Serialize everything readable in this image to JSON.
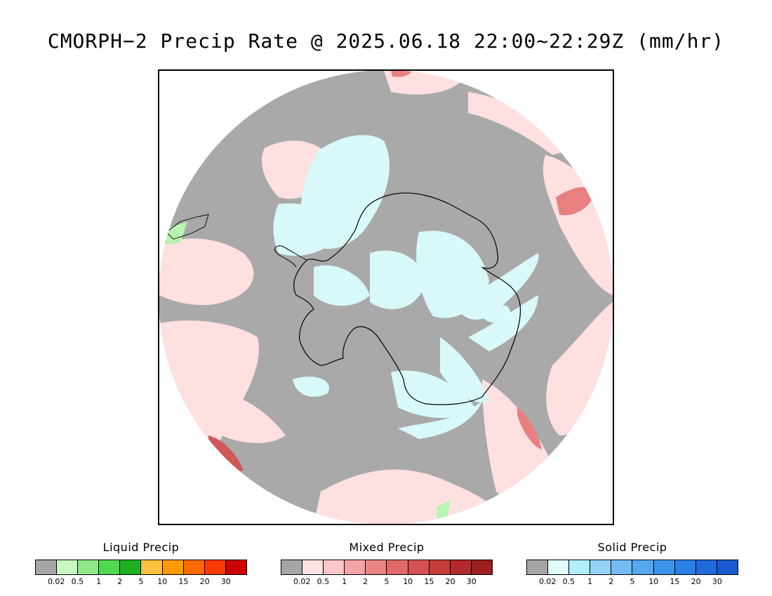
{
  "title": "CMORPH−2 Precip Rate @ 2025.06.18 22:00~22:29Z (mm/hr)",
  "map": {
    "projection": "south-polar-stereographic",
    "colors": {
      "background_no_precip": "#a9a9a9",
      "mixed_light": "#ffe0e0",
      "mixed_mid": "#e88080",
      "mixed_heavy": "#d05858",
      "solid_light": "#d8f8fa",
      "liquid_light": "#b8f5b0",
      "liquid_mid": "#5ae05a",
      "coastline": "#000000"
    }
  },
  "legends": [
    {
      "title": "Liquid Precip",
      "colors": [
        "#a6a6a6",
        "#c8f7c0",
        "#8ee88a",
        "#4ed94e",
        "#1fb01f",
        "#ffc040",
        "#ff9a00",
        "#ff6a00",
        "#ff3a00",
        "#cc0000"
      ],
      "ticks": [
        "0.02",
        "0.5",
        "1",
        "2",
        "5",
        "10",
        "15",
        "20",
        "30"
      ]
    },
    {
      "title": "Mixed Precip",
      "colors": [
        "#a6a6a6",
        "#ffe2e2",
        "#ffc8c8",
        "#f4a4a4",
        "#ec8484",
        "#e06a6a",
        "#d45252",
        "#c43c3c",
        "#b22a2a",
        "#9c2020"
      ],
      "ticks": [
        "0.02",
        "0.5",
        "1",
        "2",
        "5",
        "10",
        "15",
        "20",
        "30"
      ]
    },
    {
      "title": "Solid Precip",
      "colors": [
        "#a6a6a6",
        "#e0fcfc",
        "#b0eef8",
        "#94d2f8",
        "#74bcf4",
        "#54a8f0",
        "#3c94ec",
        "#2a80e6",
        "#1e6cdc",
        "#1a5cd0"
      ],
      "ticks": [
        "0.02",
        "0.5",
        "1",
        "2",
        "5",
        "10",
        "15",
        "20",
        "30"
      ]
    }
  ]
}
